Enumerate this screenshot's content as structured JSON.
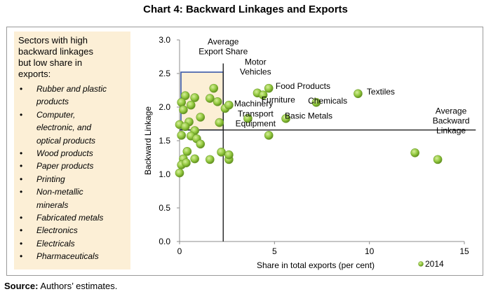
{
  "title": "Chart 4: Backward Linkages and Exports",
  "note": {
    "heading_lines": [
      "Sectors with high",
      "backward linkages",
      "but low share in",
      "exports:"
    ],
    "items": [
      [
        "Rubber and plastic",
        "products"
      ],
      [
        "Computer,",
        "electronic, and",
        "optical products"
      ],
      [
        "Wood products"
      ],
      [
        "Paper products"
      ],
      [
        "Printing"
      ],
      [
        "Non-metallic",
        "minerals"
      ],
      [
        "Fabricated metals"
      ],
      [
        "Electronics"
      ],
      [
        "Electricals"
      ],
      [
        "Pharmaceuticals"
      ]
    ]
  },
  "source": {
    "label": "Source:",
    "text": "Authors’ estimates."
  },
  "chart_data": {
    "type": "scatter",
    "xlabel": "Share in total exports (per cent)",
    "ylabel": "Backward Linkage",
    "xlim": [
      0,
      15
    ],
    "ylim": [
      0.0,
      3.0
    ],
    "x_ticks": [
      0,
      5,
      10,
      15
    ],
    "x_tick_labels": [
      "0",
      "5",
      "10",
      "15"
    ],
    "y_ticks": [
      0.0,
      0.5,
      1.0,
      1.5,
      2.0,
      2.5,
      3.0
    ],
    "y_tick_labels": [
      "0.0",
      "0.5",
      "1.0",
      "1.5",
      "2.0",
      "2.5",
      "3.0"
    ],
    "grid": false,
    "legend": "bottom-right",
    "marker_color": "#92c83e",
    "highlight_color": "#fcefd6",
    "highlight_border_color": "#3a58a8",
    "series": [
      {
        "name": "2014",
        "points": [
          {
            "x": 0.3,
            "y": 2.17
          },
          {
            "x": 0.8,
            "y": 2.14
          },
          {
            "x": 1.6,
            "y": 2.13
          },
          {
            "x": 1.8,
            "y": 2.28
          },
          {
            "x": 0.1,
            "y": 2.07
          },
          {
            "x": 0.6,
            "y": 2.03
          },
          {
            "x": 2.0,
            "y": 2.08
          },
          {
            "x": 2.4,
            "y": 1.98
          },
          {
            "x": 0.2,
            "y": 1.96
          },
          {
            "x": 1.1,
            "y": 1.85
          },
          {
            "x": 2.1,
            "y": 1.77
          },
          {
            "x": 0.5,
            "y": 1.78
          },
          {
            "x": 0.0,
            "y": 1.74
          },
          {
            "x": 0.3,
            "y": 1.71
          },
          {
            "x": 0.8,
            "y": 1.65
          },
          {
            "x": 2.6,
            "y": 2.03
          },
          {
            "x": 0.1,
            "y": 1.58
          },
          {
            "x": 0.6,
            "y": 1.57
          },
          {
            "x": 0.9,
            "y": 1.53
          },
          {
            "x": 1.1,
            "y": 1.45
          },
          {
            "x": 0.4,
            "y": 1.34
          },
          {
            "x": 0.2,
            "y": 1.23
          },
          {
            "x": 0.8,
            "y": 1.23
          },
          {
            "x": 0.1,
            "y": 1.14
          },
          {
            "x": 1.6,
            "y": 1.22
          },
          {
            "x": 2.2,
            "y": 1.33
          },
          {
            "x": 2.6,
            "y": 1.22
          },
          {
            "x": 2.6,
            "y": 1.29
          },
          {
            "x": 0.35,
            "y": 1.17
          },
          {
            "x": 0.0,
            "y": 1.02
          },
          {
            "x": 3.6,
            "y": 1.83
          },
          {
            "x": 4.1,
            "y": 2.21
          },
          {
            "x": 4.4,
            "y": 2.18
          },
          {
            "x": 4.7,
            "y": 2.28
          },
          {
            "x": 5.6,
            "y": 1.83
          },
          {
            "x": 7.2,
            "y": 2.07
          },
          {
            "x": 9.4,
            "y": 2.2
          },
          {
            "x": 4.7,
            "y": 1.58
          },
          {
            "x": 12.4,
            "y": 1.32
          },
          {
            "x": 13.6,
            "y": 1.22
          }
        ]
      }
    ],
    "reference_lines": {
      "average_export_share": 2.3,
      "average_backward_linkage": 1.66,
      "y_line_end": 15.6
    },
    "annotations": [
      {
        "lines": [
          "Average",
          "Export Share"
        ],
        "x": 2.3,
        "y": 2.93
      },
      {
        "lines": [
          "Motor",
          "Vehicles"
        ],
        "x": 4.0,
        "y": 2.63
      },
      {
        "lines": [
          "Food Products"
        ],
        "x": 6.5,
        "y": 2.27
      },
      {
        "lines": [
          "Textiles"
        ],
        "x": 10.6,
        "y": 2.19
      },
      {
        "lines": [
          "Furniture"
        ],
        "x": 5.2,
        "y": 2.07
      },
      {
        "lines": [
          "Chemicals"
        ],
        "x": 7.8,
        "y": 2.05
      },
      {
        "lines": [
          "Machinery"
        ],
        "x": 3.9,
        "y": 2.01
      },
      {
        "lines": [
          "Transport",
          "Equipment"
        ],
        "x": 4.0,
        "y": 1.86
      },
      {
        "lines": [
          "Basic Metals"
        ],
        "x": 6.8,
        "y": 1.83
      },
      {
        "lines": [
          "Average",
          "Backward",
          "Linkage"
        ],
        "x": 14.3,
        "y": 1.9
      }
    ]
  }
}
